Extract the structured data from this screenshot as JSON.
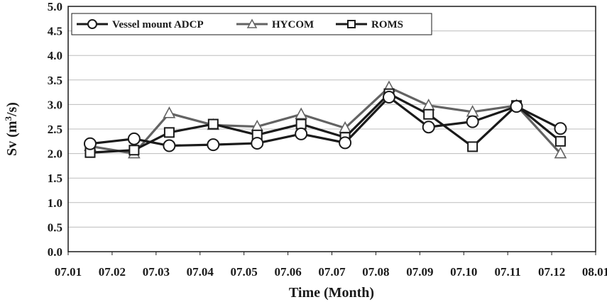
{
  "chart_data": {
    "type": "line",
    "title": "",
    "xlabel": "Time (Month)",
    "ylabel_prefix": "Sv (m",
    "ylabel_sup": "3",
    "ylabel_suffix": "/s)",
    "ylim": [
      0,
      5
    ],
    "yticks": [
      "0.0",
      "0.5",
      "1.0",
      "1.5",
      "2.0",
      "2.5",
      "3.0",
      "3.5",
      "4.0",
      "4.5",
      "5.0"
    ],
    "xlim": [
      1,
      13
    ],
    "xticks": [
      "07.01",
      "07.02",
      "07.03",
      "07.04",
      "07.05",
      "07.06",
      "07.07",
      "07.08",
      "07.09",
      "07.10",
      "07.11",
      "07.12",
      "08.01"
    ],
    "grid": true,
    "legend_position": "top-left",
    "x": [
      1.5,
      2.5,
      3.3,
      4.3,
      5.3,
      6.3,
      7.3,
      8.3,
      9.2,
      10.2,
      11.2,
      12.2
    ],
    "series": [
      {
        "name": "Vessel mount ADCP",
        "marker": "circle",
        "color": "#1a1a1a",
        "values": [
          2.2,
          2.3,
          2.16,
          2.18,
          2.21,
          2.4,
          2.22,
          3.15,
          2.54,
          2.65,
          2.96,
          2.51
        ]
      },
      {
        "name": "HYCOM",
        "marker": "triangle",
        "color": "#636363",
        "values": [
          2.15,
          2.0,
          2.82,
          2.58,
          2.55,
          2.8,
          2.52,
          3.35,
          2.98,
          2.85,
          2.98,
          2.0
        ]
      },
      {
        "name": "ROMS",
        "marker": "square",
        "color": "#1a1a1a",
        "values": [
          2.02,
          2.07,
          2.43,
          2.6,
          2.38,
          2.6,
          2.33,
          3.22,
          2.8,
          2.14,
          2.98,
          2.25
        ]
      }
    ]
  }
}
